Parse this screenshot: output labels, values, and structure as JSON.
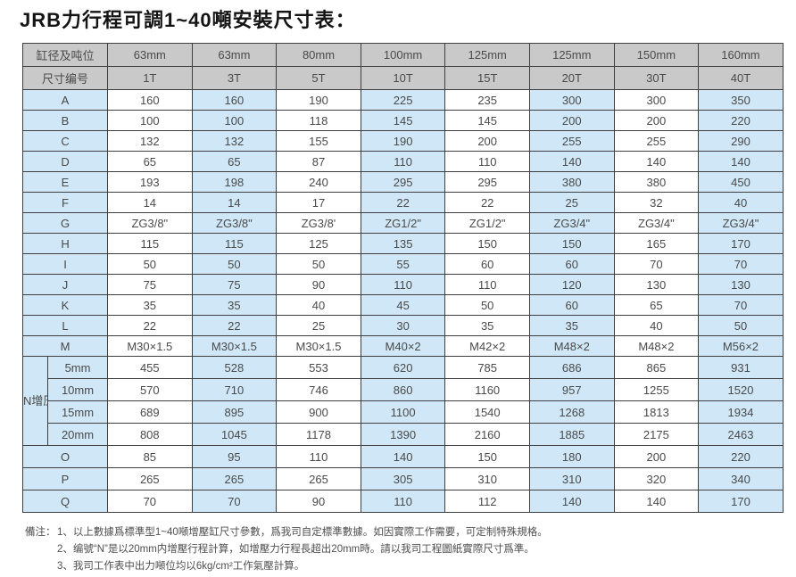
{
  "page": {
    "title": "JRB力行程可調1~40噸安裝尺寸表："
  },
  "colors": {
    "header_bg": "#c9c9c9",
    "blue_bg": "#cfe7f7",
    "border_color": "#3f3f3f",
    "text_color": "#4a4a4a"
  },
  "table": {
    "header": {
      "col1_row1": "缸径及吨位",
      "col1_row2": "尺寸编号",
      "bores": [
        "63mm",
        "63mm",
        "80mm",
        "100mm",
        "125mm",
        "125mm",
        "150mm",
        "160mm"
      ],
      "tons": [
        "1T",
        "3T",
        "5T",
        "10T",
        "15T",
        "20T",
        "30T",
        "40T"
      ]
    },
    "rows": [
      {
        "label": "A",
        "values": [
          "160",
          "160",
          "190",
          "225",
          "235",
          "300",
          "300",
          "350"
        ]
      },
      {
        "label": "B",
        "values": [
          "100",
          "100",
          "118",
          "145",
          "145",
          "200",
          "200",
          "220"
        ]
      },
      {
        "label": "C",
        "values": [
          "132",
          "132",
          "155",
          "190",
          "200",
          "255",
          "255",
          "290"
        ]
      },
      {
        "label": "D",
        "values": [
          "65",
          "65",
          "87",
          "110",
          "110",
          "140",
          "140",
          "140"
        ]
      },
      {
        "label": "E",
        "values": [
          "193",
          "198",
          "240",
          "295",
          "295",
          "380",
          "380",
          "450"
        ]
      },
      {
        "label": "F",
        "values": [
          "14",
          "14",
          "17",
          "22",
          "22",
          "25",
          "32",
          "40"
        ]
      },
      {
        "label": "G",
        "values": [
          "ZG3/8\"",
          "ZG3/8\"",
          "ZG3/8'",
          "ZG1/2\"",
          "ZG1/2\"",
          "ZG3/4\"",
          "ZG3/4\"",
          "ZG3/4\""
        ]
      },
      {
        "label": "H",
        "values": [
          "115",
          "115",
          "125",
          "135",
          "150",
          "150",
          "165",
          "170"
        ]
      },
      {
        "label": "I",
        "values": [
          "50",
          "50",
          "50",
          "55",
          "60",
          "60",
          "70",
          "70"
        ]
      },
      {
        "label": "J",
        "values": [
          "75",
          "75",
          "90",
          "110",
          "110",
          "120",
          "130",
          "130"
        ]
      },
      {
        "label": "K",
        "values": [
          "35",
          "35",
          "40",
          "45",
          "50",
          "60",
          "65",
          "70"
        ]
      },
      {
        "label": "L",
        "values": [
          "22",
          "22",
          "25",
          "30",
          "35",
          "35",
          "40",
          "50"
        ]
      },
      {
        "label": "M",
        "values": [
          "M30×1.5",
          "M30×1.5",
          "M30×1.5",
          "M40×2",
          "M42×2",
          "M48×2",
          "M48×2",
          "M56×2"
        ]
      }
    ],
    "n_section": {
      "label": "N增压行程",
      "rows": [
        {
          "label": "5mm",
          "values": [
            "455",
            "528",
            "553",
            "620",
            "785",
            "686",
            "865",
            "931"
          ]
        },
        {
          "label": "10mm",
          "values": [
            "570",
            "710",
            "746",
            "860",
            "1160",
            "957",
            "1255",
            "1520"
          ]
        },
        {
          "label": "15mm",
          "values": [
            "689",
            "895",
            "900",
            "1100",
            "1540",
            "1268",
            "1813",
            "1934"
          ]
        },
        {
          "label": "20mm",
          "values": [
            "808",
            "1045",
            "1178",
            "1390",
            "2160",
            "1885",
            "2175",
            "2463"
          ]
        }
      ]
    },
    "rows_after": [
      {
        "label": "O",
        "values": [
          "85",
          "95",
          "110",
          "140",
          "150",
          "180",
          "200",
          "220"
        ]
      },
      {
        "label": "P",
        "values": [
          "265",
          "265",
          "265",
          "305",
          "310",
          "310",
          "320",
          "340"
        ]
      },
      {
        "label": "Q",
        "values": [
          "70",
          "70",
          "90",
          "110",
          "112",
          "140",
          "140",
          "170"
        ]
      }
    ]
  },
  "notes": {
    "prefix": "備注：",
    "items": [
      "1、以上數據爲標準型1~40噸增壓缸尺寸參數，爲我司自定標準數據。如因實際工作需要，可定制特殊規格。",
      "2、编號“N”是以20mm内增壓行程計算，如增壓力行程長超出20mm時。請以我司工程圖紙實際尺寸爲準。",
      "3、我司工作表中出力噸位均以6kg/cm²工作氣壓計算。"
    ]
  }
}
